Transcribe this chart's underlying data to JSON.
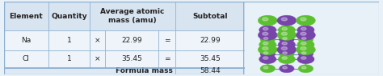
{
  "headers": [
    "Element",
    "Quantity",
    "",
    "Average atomic\nmass (amu)",
    "",
    "Subtotal"
  ],
  "rows": [
    [
      "Na",
      "1",
      "×",
      "22.99",
      "=",
      "22.99"
    ],
    [
      "Cl",
      "1",
      "×",
      "35.45",
      "=",
      "35.45"
    ]
  ],
  "footer_label": "Formula mass",
  "footer_value": "58.44",
  "header_bg": "#d8e4f0",
  "row_bg": "#eef4fa",
  "footer_bg": "#ddeaf6",
  "border_color": "#8ab0d0",
  "text_color": "#222222",
  "cell_fontsize": 6.5,
  "green_color": "#5bbf30",
  "purple_color": "#7744aa",
  "bond_color": "#6688bb",
  "crystal_bg": "#e8f0f8"
}
